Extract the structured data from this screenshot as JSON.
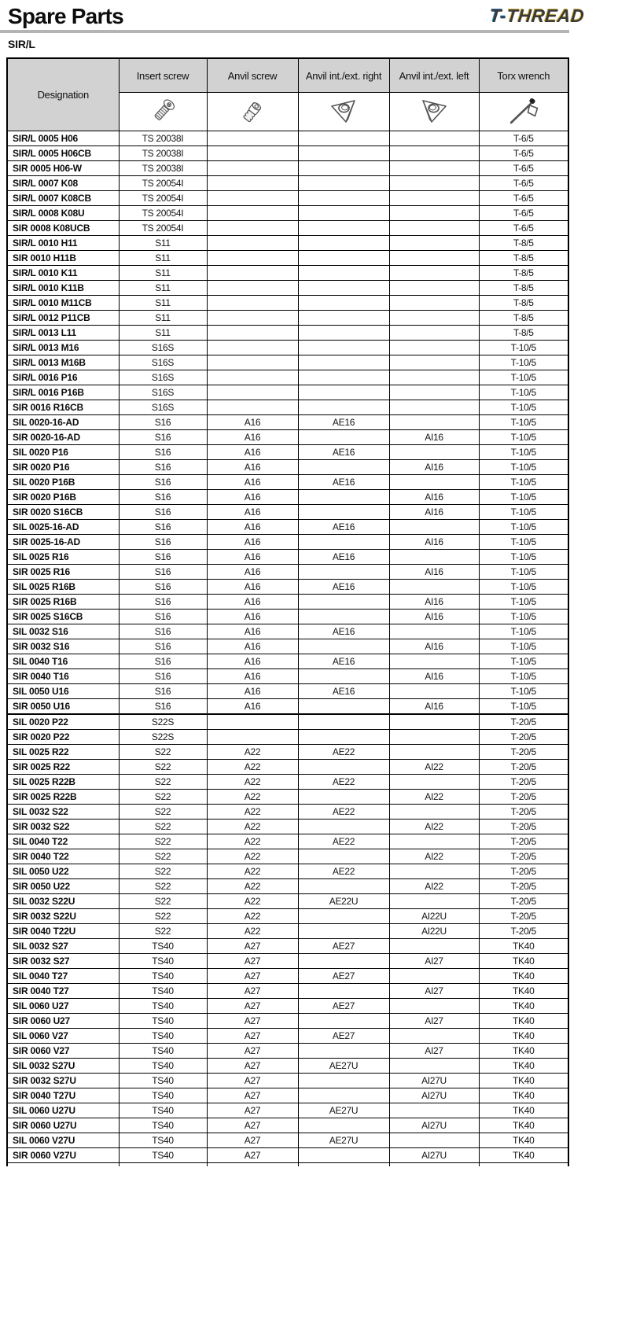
{
  "page": {
    "title": "Spare Parts",
    "subtitle": "SIR/L",
    "logo": {
      "part1": "T-",
      "part2": "THREAD",
      "color_t": "#1d6fb7",
      "color_thread": "#c79a12"
    }
  },
  "colors": {
    "header_bg": "#d2d2d2",
    "border": "#000000",
    "title_rule": "#b4b4b4"
  },
  "table": {
    "columns": [
      {
        "key": "designation",
        "label": "Designation",
        "icon": null
      },
      {
        "key": "insert_screw",
        "label": "Insert screw",
        "icon": "insert-screw-icon"
      },
      {
        "key": "anvil_screw",
        "label": "Anvil screw",
        "icon": "anvil-screw-icon"
      },
      {
        "key": "anvil_right",
        "label": "Anvil int./ext. right",
        "icon": "anvil-int-ext-right-icon"
      },
      {
        "key": "anvil_left",
        "label": "Anvil int./ext. left",
        "icon": "anvil-int-ext-left-icon"
      },
      {
        "key": "torx",
        "label": "Torx wrench",
        "icon": "torx-wrench-icon"
      }
    ],
    "section_start_index": 39,
    "rows": [
      [
        "SIR/L 0005 H06",
        "TS 20038I",
        "",
        "",
        "",
        "T-6/5"
      ],
      [
        "SIR/L 0005 H06CB",
        "TS 20038I",
        "",
        "",
        "",
        "T-6/5"
      ],
      [
        "SIR 0005 H06-W",
        "TS 20038I",
        "",
        "",
        "",
        "T-6/5"
      ],
      [
        "SIR/L 0007 K08",
        "TS 20054I",
        "",
        "",
        "",
        "T-6/5"
      ],
      [
        "SIR/L 0007 K08CB",
        "TS 20054I",
        "",
        "",
        "",
        "T-6/5"
      ],
      [
        "SIR/L 0008 K08U",
        "TS 20054I",
        "",
        "",
        "",
        "T-6/5"
      ],
      [
        "SIR 0008 K08UCB",
        "TS 20054I",
        "",
        "",
        "",
        "T-6/5"
      ],
      [
        "SIR/L 0010 H11",
        "S11",
        "",
        "",
        "",
        "T-8/5"
      ],
      [
        "SIR 0010 H11B",
        "S11",
        "",
        "",
        "",
        "T-8/5"
      ],
      [
        "SIR/L 0010 K11",
        "S11",
        "",
        "",
        "",
        "T-8/5"
      ],
      [
        "SIR/L 0010 K11B",
        "S11",
        "",
        "",
        "",
        "T-8/5"
      ],
      [
        "SIR/L 0010 M11CB",
        "S11",
        "",
        "",
        "",
        "T-8/5"
      ],
      [
        "SIR/L 0012 P11CB",
        "S11",
        "",
        "",
        "",
        "T-8/5"
      ],
      [
        "SIR/L 0013 L11",
        "S11",
        "",
        "",
        "",
        "T-8/5"
      ],
      [
        "SIR/L 0013 M16",
        "S16S",
        "",
        "",
        "",
        "T-10/5"
      ],
      [
        "SIR/L 0013 M16B",
        "S16S",
        "",
        "",
        "",
        "T-10/5"
      ],
      [
        "SIR/L 0016 P16",
        "S16S",
        "",
        "",
        "",
        "T-10/5"
      ],
      [
        "SIR/L 0016 P16B",
        "S16S",
        "",
        "",
        "",
        "T-10/5"
      ],
      [
        "SIR 0016 R16CB",
        "S16S",
        "",
        "",
        "",
        "T-10/5"
      ],
      [
        "SIL 0020-16-AD",
        "S16",
        "A16",
        "AE16",
        "",
        "T-10/5"
      ],
      [
        "SIR 0020-16-AD",
        "S16",
        "A16",
        "",
        "AI16",
        "T-10/5"
      ],
      [
        "SIL 0020 P16",
        "S16",
        "A16",
        "AE16",
        "",
        "T-10/5"
      ],
      [
        "SIR 0020 P16",
        "S16",
        "A16",
        "",
        "AI16",
        "T-10/5"
      ],
      [
        "SIL 0020 P16B",
        "S16",
        "A16",
        "AE16",
        "",
        "T-10/5"
      ],
      [
        "SIR 0020 P16B",
        "S16",
        "A16",
        "",
        "AI16",
        "T-10/5"
      ],
      [
        "SIR 0020 S16CB",
        "S16",
        "A16",
        "",
        "AI16",
        "T-10/5"
      ],
      [
        "SIL 0025-16-AD",
        "S16",
        "A16",
        "AE16",
        "",
        "T-10/5"
      ],
      [
        "SIR 0025-16-AD",
        "S16",
        "A16",
        "",
        "AI16",
        "T-10/5"
      ],
      [
        "SIL 0025 R16",
        "S16",
        "A16",
        "AE16",
        "",
        "T-10/5"
      ],
      [
        "SIR 0025 R16",
        "S16",
        "A16",
        "",
        "AI16",
        "T-10/5"
      ],
      [
        "SIL 0025 R16B",
        "S16",
        "A16",
        "AE16",
        "",
        "T-10/5"
      ],
      [
        "SIR 0025 R16B",
        "S16",
        "A16",
        "",
        "AI16",
        "T-10/5"
      ],
      [
        "SIR 0025 S16CB",
        "S16",
        "A16",
        "",
        "AI16",
        "T-10/5"
      ],
      [
        "SIL 0032 S16",
        "S16",
        "A16",
        "AE16",
        "",
        "T-10/5"
      ],
      [
        "SIR 0032 S16",
        "S16",
        "A16",
        "",
        "AI16",
        "T-10/5"
      ],
      [
        "SIL 0040 T16",
        "S16",
        "A16",
        "AE16",
        "",
        "T-10/5"
      ],
      [
        "SIR 0040 T16",
        "S16",
        "A16",
        "",
        "AI16",
        "T-10/5"
      ],
      [
        "SIL 0050 U16",
        "S16",
        "A16",
        "AE16",
        "",
        "T-10/5"
      ],
      [
        "SIR 0050 U16",
        "S16",
        "A16",
        "",
        "AI16",
        "T-10/5"
      ],
      [
        "SIL 0020 P22",
        "S22S",
        "",
        "",
        "",
        "T-20/5"
      ],
      [
        "SIR 0020 P22",
        "S22S",
        "",
        "",
        "",
        "T-20/5"
      ],
      [
        "SIL 0025 R22",
        "S22",
        "A22",
        "AE22",
        "",
        "T-20/5"
      ],
      [
        "SIR 0025 R22",
        "S22",
        "A22",
        "",
        "AI22",
        "T-20/5"
      ],
      [
        "SIL 0025 R22B",
        "S22",
        "A22",
        "AE22",
        "",
        "T-20/5"
      ],
      [
        "SIR 0025 R22B",
        "S22",
        "A22",
        "",
        "AI22",
        "T-20/5"
      ],
      [
        "SIL 0032 S22",
        "S22",
        "A22",
        "AE22",
        "",
        "T-20/5"
      ],
      [
        "SIR 0032 S22",
        "S22",
        "A22",
        "",
        "AI22",
        "T-20/5"
      ],
      [
        "SIL 0040 T22",
        "S22",
        "A22",
        "AE22",
        "",
        "T-20/5"
      ],
      [
        "SIR 0040 T22",
        "S22",
        "A22",
        "",
        "AI22",
        "T-20/5"
      ],
      [
        "SIL 0050 U22",
        "S22",
        "A22",
        "AE22",
        "",
        "T-20/5"
      ],
      [
        "SIR 0050 U22",
        "S22",
        "A22",
        "",
        "AI22",
        "T-20/5"
      ],
      [
        "SIL 0032 S22U",
        "S22",
        "A22",
        "AE22U",
        "",
        "T-20/5"
      ],
      [
        "SIR 0032 S22U",
        "S22",
        "A22",
        "",
        "AI22U",
        "T-20/5"
      ],
      [
        "SIR 0040 T22U",
        "S22",
        "A22",
        "",
        "AI22U",
        "T-20/5"
      ],
      [
        "SIL 0032 S27",
        "TS40",
        "A27",
        "AE27",
        "",
        "TK40"
      ],
      [
        "SIR 0032 S27",
        "TS40",
        "A27",
        "",
        "AI27",
        "TK40"
      ],
      [
        "SIL 0040 T27",
        "TS40",
        "A27",
        "AE27",
        "",
        "TK40"
      ],
      [
        "SIR 0040 T27",
        "TS40",
        "A27",
        "",
        "AI27",
        "TK40"
      ],
      [
        "SIL 0060 U27",
        "TS40",
        "A27",
        "AE27",
        "",
        "TK40"
      ],
      [
        "SIR 0060 U27",
        "TS40",
        "A27",
        "",
        "AI27",
        "TK40"
      ],
      [
        "SIL 0060 V27",
        "TS40",
        "A27",
        "AE27",
        "",
        "TK40"
      ],
      [
        "SIR 0060 V27",
        "TS40",
        "A27",
        "",
        "AI27",
        "TK40"
      ],
      [
        "SIL 0032 S27U",
        "TS40",
        "A27",
        "AE27U",
        "",
        "TK40"
      ],
      [
        "SIR 0032 S27U",
        "TS40",
        "A27",
        "",
        "AI27U",
        "TK40"
      ],
      [
        "SIR 0040 T27U",
        "TS40",
        "A27",
        "",
        "AI27U",
        "TK40"
      ],
      [
        "SIL 0060 U27U",
        "TS40",
        "A27",
        "AE27U",
        "",
        "TK40"
      ],
      [
        "SIR 0060 U27U",
        "TS40",
        "A27",
        "",
        "AI27U",
        "TK40"
      ],
      [
        "SIL 0060 V27U",
        "TS40",
        "A27",
        "AE27U",
        "",
        "TK40"
      ],
      [
        "SIR 0060 V27U",
        "TS40",
        "A27",
        "",
        "AI27U",
        "TK40"
      ]
    ]
  }
}
